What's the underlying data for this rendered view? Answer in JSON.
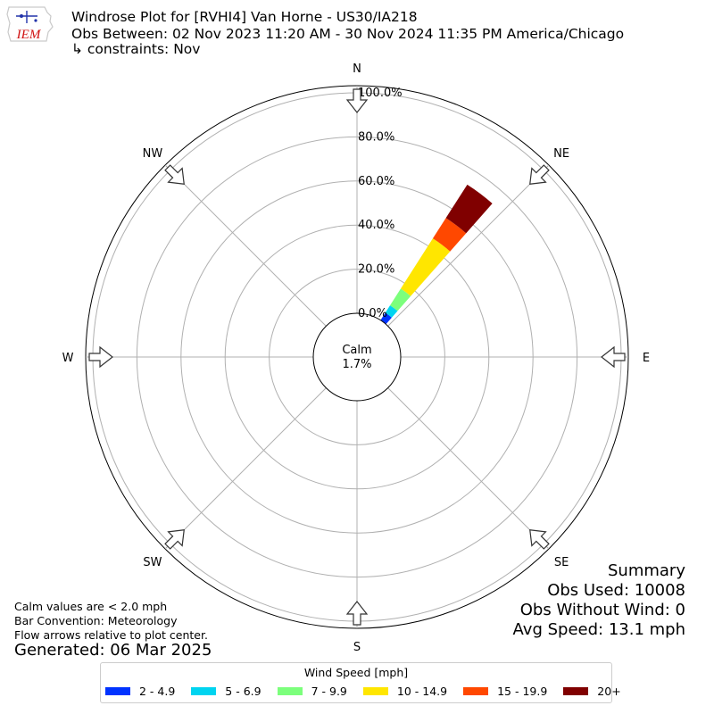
{
  "header": {
    "logo_text": "IEM",
    "title": "Windrose Plot for [RVHI4] Van Horne - US30/IA218",
    "subtitle": "Obs Between: 02 Nov 2023 11:20 AM - 30 Nov 2024 11:35 PM America/Chicago",
    "constraints": "↳ constraints: Nov"
  },
  "notes": {
    "calm_note": "Calm values are < 2.0 mph",
    "bar_convention": "Bar Convention: Meteorology",
    "flow_note": "Flow arrows relative to plot center.",
    "generated": "Generated: 06 Mar 2025"
  },
  "summary": {
    "title": "Summary",
    "obs_used": "Obs Used: 10008",
    "obs_without_wind": "Obs Without Wind: 0",
    "avg_speed": "Avg Speed: 13.1 mph"
  },
  "legend": {
    "title": "Wind Speed [mph]",
    "items": [
      {
        "label": "2 - 4.9",
        "color": "#0033ff"
      },
      {
        "label": "5 - 6.9",
        "color": "#00d4f0"
      },
      {
        "label": "7 - 9.9",
        "color": "#7cff7c"
      },
      {
        "label": "10 - 14.9",
        "color": "#ffe600"
      },
      {
        "label": "15 - 19.9",
        "color": "#ff4800"
      },
      {
        "label": "20+",
        "color": "#800000"
      }
    ]
  },
  "chart_data": {
    "type": "windrose",
    "radial_ticks": [
      "0.0%",
      "20.0%",
      "40.0%",
      "60.0%",
      "80.0%",
      "100.0%"
    ],
    "rlim": [
      0,
      100
    ],
    "directions": [
      "N",
      "NE",
      "E",
      "SE",
      "S",
      "SW",
      "W",
      "NW"
    ],
    "calm_label": "Calm",
    "calm_value": "1.7%",
    "grid": true,
    "bars": [
      {
        "direction_deg": 37,
        "cumulative": [
          4,
          8,
          17,
          44,
          55,
          73
        ]
      }
    ]
  }
}
